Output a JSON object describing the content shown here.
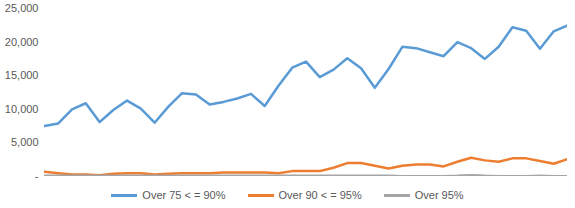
{
  "chart_data": {
    "type": "line",
    "x": [
      1,
      2,
      3,
      4,
      5,
      6,
      7,
      8,
      9,
      10,
      11,
      12,
      13,
      14,
      15,
      16,
      17,
      18,
      19,
      20,
      21,
      22,
      23,
      24,
      25,
      26,
      27,
      28,
      29,
      30,
      31,
      32,
      33,
      34,
      35,
      36,
      37,
      38,
      39
    ],
    "xlim": [
      1,
      39
    ],
    "ylim": [
      0,
      25000
    ],
    "yticks": [
      {
        "value": 0,
        "label": "-"
      },
      {
        "value": 5000,
        "label": "5,000"
      },
      {
        "value": 10000,
        "label": "10,000"
      },
      {
        "value": 15000,
        "label": "15,000"
      },
      {
        "value": 20000,
        "label": "20,000"
      },
      {
        "value": 25000,
        "label": "25,000"
      }
    ],
    "grid": false,
    "tick_labels": "y",
    "legend": "bottom",
    "series": [
      {
        "name": "Over 75 < = 90%",
        "color": "#5b9bd5",
        "values": [
          7500,
          7900,
          10000,
          10900,
          8100,
          9900,
          11300,
          10100,
          8000,
          10400,
          12400,
          12200,
          10700,
          11100,
          11600,
          12300,
          10500,
          13500,
          16200,
          17100,
          14800,
          15900,
          17600,
          16100,
          13200,
          16000,
          19300,
          19100,
          18500,
          17900,
          20000,
          19100,
          17500,
          19300,
          22200,
          21700,
          19000,
          21600,
          22500
        ]
      },
      {
        "name": "Over 90 < = 95%",
        "color": "#ed7d31",
        "values": [
          700,
          500,
          300,
          300,
          200,
          400,
          500,
          500,
          300,
          400,
          500,
          500,
          500,
          600,
          600,
          600,
          600,
          500,
          800,
          800,
          800,
          1300,
          2000,
          2000,
          1600,
          1200,
          1600,
          1800,
          1800,
          1500,
          2200,
          2800,
          2400,
          2200,
          2700,
          2700,
          2300,
          1900,
          2600
        ]
      },
      {
        "name": "Over 95%",
        "color": "#a5a5a5",
        "values": [
          100,
          100,
          100,
          100,
          100,
          100,
          100,
          100,
          100,
          100,
          100,
          100,
          100,
          100,
          100,
          100,
          100,
          100,
          100,
          100,
          100,
          100,
          100,
          100,
          100,
          100,
          50,
          50,
          50,
          50,
          100,
          200,
          100,
          50,
          50,
          50,
          100,
          50,
          50
        ]
      }
    ]
  }
}
